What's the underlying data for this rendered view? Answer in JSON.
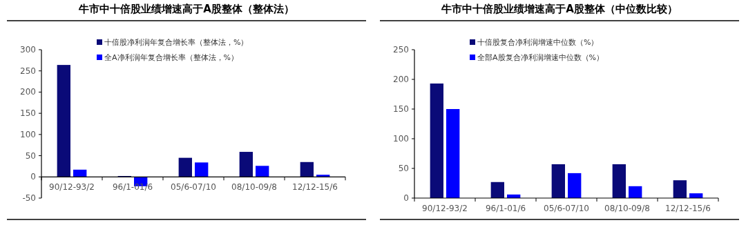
{
  "chart_data": [
    {
      "type": "bar",
      "title": "牛市中十倍股业绩增速高于A股整体（整体法）",
      "categories": [
        "90/12-93/2",
        "96/1-01/6",
        "05/6-07/10",
        "08/10-09/8",
        "12/12-15/6"
      ],
      "series": [
        {
          "name": "十倍股净利润年复合增长率（整体法，%）",
          "color": "#0a0a78",
          "values": [
            264,
            2,
            45,
            59,
            35
          ]
        },
        {
          "name": "全A净利润年复合增长率（整体法，%）",
          "color": "#0000ff",
          "values": [
            17,
            -22,
            34,
            26,
            5
          ]
        }
      ],
      "ylim": [
        -50,
        300
      ],
      "yticks": [
        -50,
        0,
        50,
        100,
        150,
        200,
        250,
        300
      ],
      "grid": false,
      "legend": "top"
    },
    {
      "type": "bar",
      "title": "牛市中十倍股业绩增速高于A股整体（中位数比较）",
      "categories": [
        "90/12-93/2",
        "96/1-01/6",
        "05/6-07/10",
        "08/10-09/8",
        "12/12-15/6"
      ],
      "series": [
        {
          "name": "十倍股复合净利润增速中位数（%）",
          "color": "#0a0a78",
          "values": [
            193,
            27,
            57,
            57,
            30
          ]
        },
        {
          "name": "全部A股复合净利润增速中位数（%）",
          "color": "#0000ff",
          "values": [
            150,
            6,
            42,
            20,
            8
          ]
        }
      ],
      "ylim": [
        0,
        250
      ],
      "yticks": [
        0,
        50,
        100,
        150,
        200,
        250
      ],
      "grid": false,
      "legend": "top"
    }
  ]
}
